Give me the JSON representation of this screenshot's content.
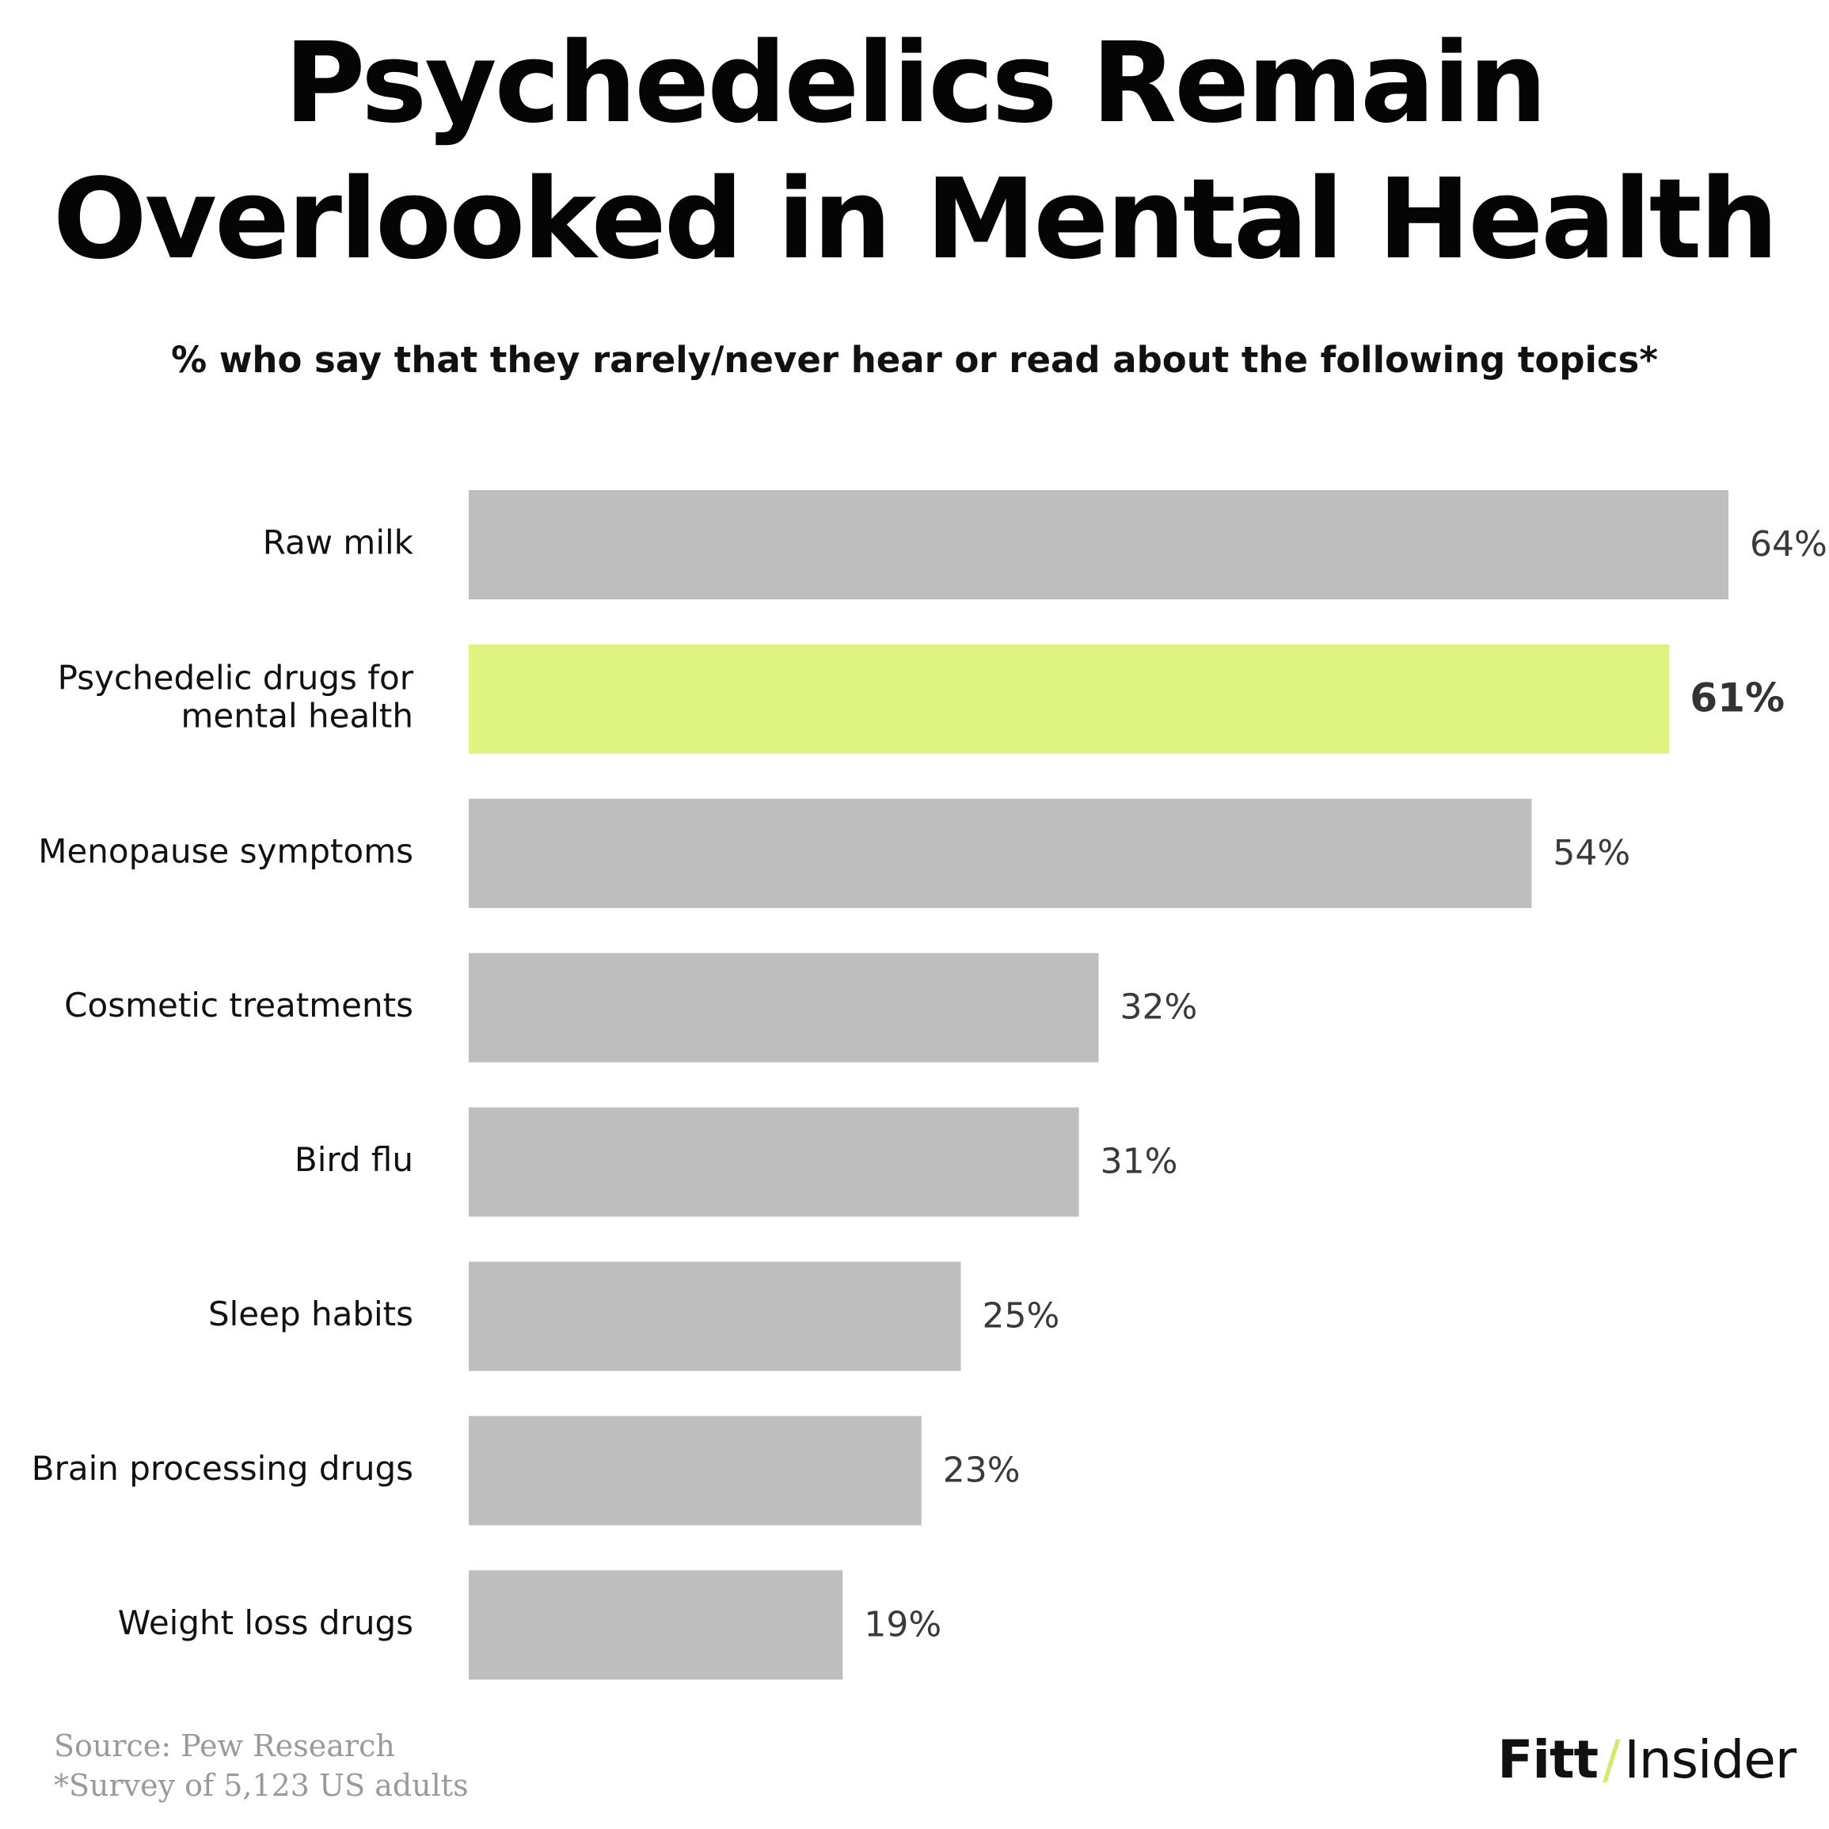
{
  "header": {
    "title_line1": "Psychedelics Remain",
    "title_line2": "Overlooked in Mental Health",
    "subtitle": "% who say that they rarely/never hear or read about the following topics*"
  },
  "chart_data": {
    "type": "bar",
    "orientation": "horizontal",
    "title": "Psychedelics Remain Overlooked in Mental Health",
    "subtitle": "% who say that they rarely/never hear or read about the following topics*",
    "categories": [
      "Raw milk",
      "Psychedelic drugs for mental health",
      "Menopause symptoms",
      "Cosmetic treatments",
      "Bird flu",
      "Sleep habits",
      "Brain processing drugs",
      "Weight loss drugs"
    ],
    "category_lines": [
      [
        "Raw milk"
      ],
      [
        "Psychedelic drugs for",
        "mental health"
      ],
      [
        "Menopause symptoms"
      ],
      [
        "Cosmetic treatments"
      ],
      [
        "Bird flu"
      ],
      [
        "Sleep habits"
      ],
      [
        "Brain processing drugs"
      ],
      [
        "Weight loss drugs"
      ]
    ],
    "values": [
      64,
      61,
      54,
      32,
      31,
      25,
      23,
      19
    ],
    "value_labels": [
      "64%",
      "61%",
      "54%",
      "32%",
      "31%",
      "25%",
      "23%",
      "19%"
    ],
    "highlight_index": 1,
    "xlabel": "",
    "ylabel": "",
    "xlim": [
      0,
      64
    ],
    "grid": false,
    "legend": "none",
    "colors": {
      "bar": "#bebebe",
      "highlight": "#dff381"
    }
  },
  "footer": {
    "source": "Source: Pew Research",
    "note": "*Survey of 5,123 US adults",
    "logo_left": "Fitt",
    "logo_slash": "/",
    "logo_right": "Insider"
  }
}
